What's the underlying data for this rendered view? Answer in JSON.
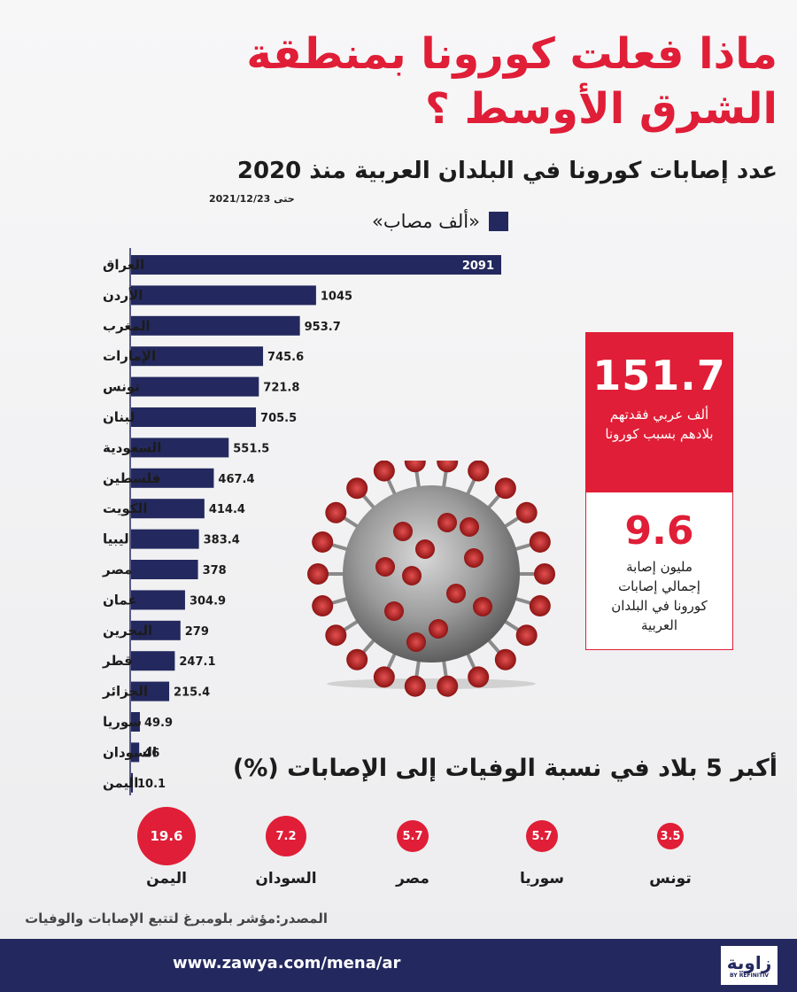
{
  "title": "ماذا فعلت كورونا  بمنطقة الشرق الأوسط ؟",
  "subtitle": "عدد إصابات كورونا في البلدان العربية منذ 2020",
  "date_note": "حتى 2021/12/23",
  "legend_label": "«ألف مصاب»",
  "colors": {
    "bar": "#23295e",
    "accent": "#e01e37",
    "footer": "#23295e"
  },
  "chart_data": [
    {
      "type": "bar",
      "orientation": "horizontal",
      "categories": [
        "العراق",
        "الأردن",
        "المغرب",
        "الإمارات",
        "تونس",
        "لبنان",
        "السعودية",
        "فلسطين",
        "الكويت",
        "ليبيا",
        "مصر",
        "عمان",
        "البحرين",
        "قطر",
        "الجزائر",
        "سوريا",
        "السودان",
        "اليمن"
      ],
      "values": [
        2091,
        1045,
        953.7,
        745.6,
        721.8,
        705.5,
        551.5,
        467.4,
        414.4,
        383.4,
        378,
        304.9,
        279,
        247.1,
        215.4,
        49.9,
        46,
        10.1
      ],
      "series_label": "«ألف مصاب»",
      "xlim": [
        0,
        2091
      ],
      "legend_position": "top"
    },
    {
      "type": "bubble",
      "title": "أكبر 5 بلاد في نسبة الوفيات إلى الإصابات (%)",
      "categories": [
        "اليمن",
        "السودان",
        "مصر",
        "سوريا",
        "تونس"
      ],
      "values": [
        19.6,
        7.2,
        5.7,
        5.7,
        3.5
      ]
    }
  ],
  "highlights": [
    {
      "value": "151.7",
      "caption": "ألف عربي فقدتهم بلادهم بسبب كورونا"
    },
    {
      "value": "9.6",
      "caption": "مليون إصابة إجمالي إصابات كورونا في البلدان العربية"
    }
  ],
  "source": "المصدر:مؤشر بلومبرغ لتتبع الإصابات والوفيات",
  "footer": {
    "url": "www.zawya.com/mena/ar",
    "logo_text": "زاوية",
    "logo_sub": "BY REFINITIV"
  }
}
